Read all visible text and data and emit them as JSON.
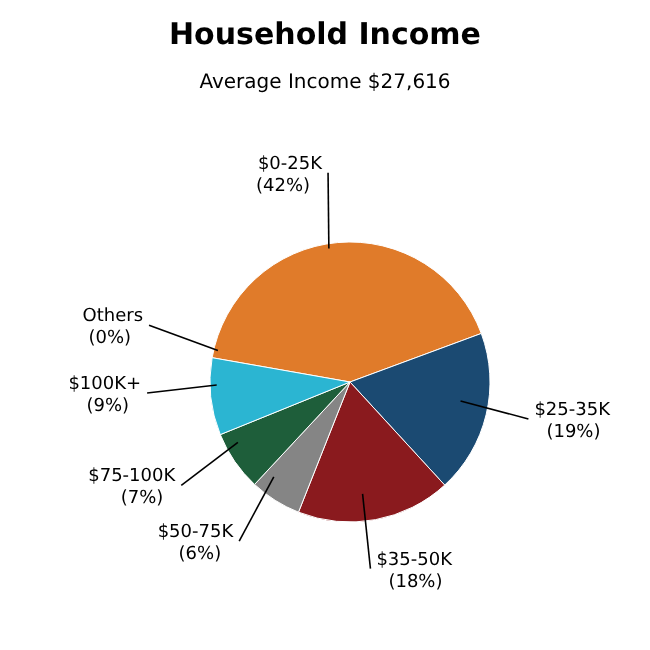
{
  "chart_data": {
    "type": "pie",
    "title": "Household Income",
    "subtitle": "Average Income  $27,616",
    "categories": [
      "$0-25K",
      "$25-35K",
      "$35-50K",
      "$50-75K",
      "$75-100K",
      "$100K+",
      "Others"
    ],
    "values": [
      42,
      19,
      18,
      6,
      7,
      9,
      0
    ],
    "colors": [
      "#e07b2a",
      "#1b4a72",
      "#8a1a1e",
      "#858585",
      "#1e5e3a",
      "#2bb5d2",
      "#c8c8c8"
    ],
    "value_labels": [
      "(42%)",
      "(19%)",
      "(18%)",
      "(6%)",
      "(7%)",
      "(9%)",
      "(0%)"
    ]
  }
}
